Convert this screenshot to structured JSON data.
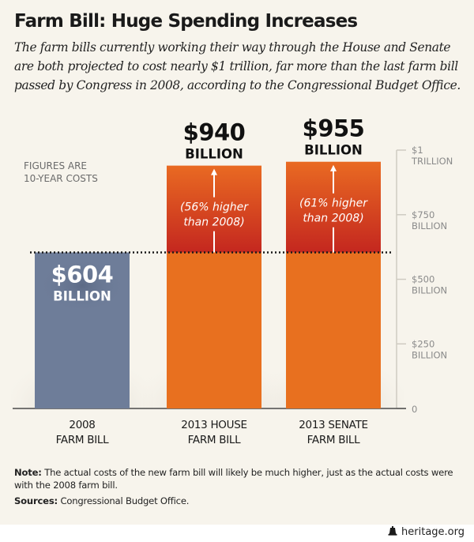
{
  "header": {
    "title": "Farm Bill: Huge Spending Increases",
    "subtitle": "The farm bills currently working their way through the House and Senate are both projected to cost nearly $1 trillion, far more than the last farm bill passed by Congress in 2008, according to the Congressional Budget Office."
  },
  "figures_note": [
    "FIGURES ARE",
    "10-YEAR COSTS"
  ],
  "chart_data": {
    "type": "bar",
    "title": "Farm Bill: Huge Spending Increases",
    "xlabel": "",
    "ylabel": "",
    "ylim": [
      0,
      1000
    ],
    "unit": "billion USD",
    "categories": [
      [
        "2008",
        "FARM BILL"
      ],
      [
        "2013 HOUSE",
        "FARM BILL"
      ],
      [
        "2013 SENATE",
        "FARM BILL"
      ]
    ],
    "values": [
      604,
      940,
      955
    ],
    "value_labels": [
      {
        "amount": "$604",
        "unit": "BILLION"
      },
      {
        "amount": "$940",
        "unit": "BILLION"
      },
      {
        "amount": "$955",
        "unit": "BILLION"
      }
    ],
    "increase_labels": [
      null,
      [
        "(56% higher",
        "than 2008)"
      ],
      [
        "(61% higher",
        "than 2008)"
      ]
    ],
    "reference_line": {
      "value": 604,
      "style": "dotted"
    },
    "yticks": [
      {
        "value": 1000,
        "label": [
          "$1",
          "TRILLION"
        ]
      },
      {
        "value": 750,
        "label": [
          "$750",
          "BILLION"
        ]
      },
      {
        "value": 500,
        "label": [
          "$500",
          "BILLION"
        ]
      },
      {
        "value": 250,
        "label": [
          "$250",
          "BILLION"
        ]
      },
      {
        "value": 0,
        "label": [
          "0"
        ]
      }
    ],
    "colors": {
      "baseline_bar": "#6e7d99",
      "new_bar_bottom": "#e8701f",
      "new_bar_increase_top": "#e96a22",
      "new_bar_increase_bottom": "#c4271f",
      "reference_line": "#1a1a1a",
      "axis": "#cfcbc2"
    },
    "grid": false
  },
  "footer": {
    "note_label": "Note:",
    "note_text": " The actual costs of the new farm bill will likely be much higher, just as the actual costs were with the 2008 farm bill.",
    "sources_label": "Sources:",
    "sources_text": " Congressional Budget Office.",
    "credit": "heritage.org"
  }
}
